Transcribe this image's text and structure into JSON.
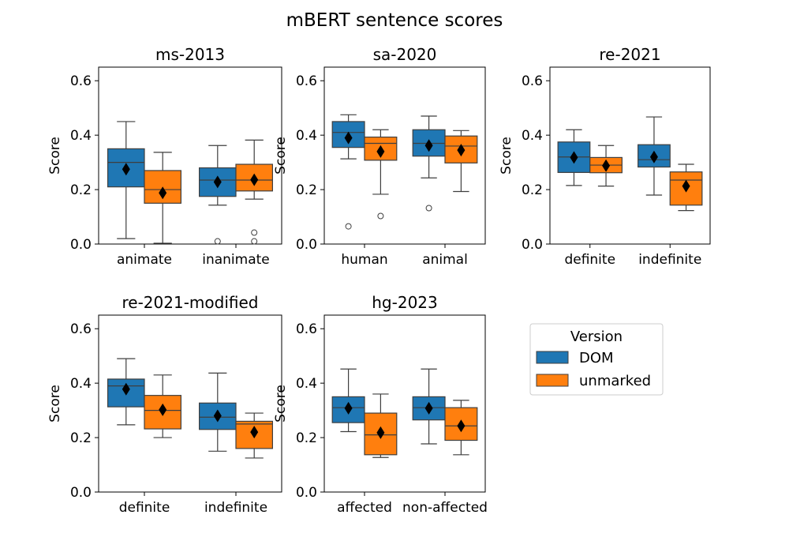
{
  "figure_title": "mBERT sentence scores",
  "legend": {
    "title": "Version",
    "placement": "right of the bottom row",
    "entries": [
      {
        "label": "DOM",
        "color": "#1f77b4"
      },
      {
        "label": "unmarked",
        "color": "#ff7f0e"
      }
    ]
  },
  "chart_data": [
    {
      "type": "box",
      "title": "ms-2013",
      "ylabel": "Score",
      "ylim": [
        0,
        0.65
      ],
      "yticks": [
        "0.0",
        "0.2",
        "0.4",
        "0.6"
      ],
      "categories": [
        "animate",
        "inanimate"
      ],
      "series": [
        {
          "name": "DOM",
          "boxes": [
            {
              "whisker_low": 0.02,
              "q1": 0.21,
              "median": 0.3,
              "q3": 0.35,
              "whisker_high": 0.45,
              "mean": 0.275,
              "outliers": []
            },
            {
              "whisker_low": 0.143,
              "q1": 0.175,
              "median": 0.235,
              "q3": 0.28,
              "whisker_high": 0.362,
              "mean": 0.228,
              "outliers": [
                0.01
              ]
            }
          ]
        },
        {
          "name": "unmarked",
          "boxes": [
            {
              "whisker_low": 0.003,
              "q1": 0.15,
              "median": 0.2,
              "q3": 0.27,
              "whisker_high": 0.337,
              "mean": 0.188,
              "outliers": []
            },
            {
              "whisker_low": 0.165,
              "q1": 0.195,
              "median": 0.235,
              "q3": 0.293,
              "whisker_high": 0.382,
              "mean": 0.236,
              "outliers": [
                0.042,
                0.01
              ]
            }
          ]
        }
      ]
    },
    {
      "type": "box",
      "title": "sa-2020",
      "ylabel": "Score",
      "ylim": [
        0,
        0.65
      ],
      "yticks": [
        "0.0",
        "0.2",
        "0.4",
        "0.6"
      ],
      "categories": [
        "human",
        "animal"
      ],
      "series": [
        {
          "name": "DOM",
          "boxes": [
            {
              "whisker_low": 0.313,
              "q1": 0.355,
              "median": 0.41,
              "q3": 0.45,
              "whisker_high": 0.475,
              "mean": 0.39,
              "outliers": [
                0.065
              ]
            },
            {
              "whisker_low": 0.243,
              "q1": 0.323,
              "median": 0.37,
              "q3": 0.42,
              "whisker_high": 0.47,
              "mean": 0.362,
              "outliers": [
                0.132
              ]
            }
          ]
        },
        {
          "name": "unmarked",
          "boxes": [
            {
              "whisker_low": 0.183,
              "q1": 0.308,
              "median": 0.37,
              "q3": 0.393,
              "whisker_high": 0.42,
              "mean": 0.34,
              "outliers": [
                0.103
              ]
            },
            {
              "whisker_low": 0.193,
              "q1": 0.298,
              "median": 0.36,
              "q3": 0.397,
              "whisker_high": 0.417,
              "mean": 0.345,
              "outliers": []
            }
          ]
        }
      ]
    },
    {
      "type": "box",
      "title": "re-2021",
      "ylabel": "Score",
      "ylim": [
        0,
        0.65
      ],
      "yticks": [
        "0.0",
        "0.2",
        "0.4",
        "0.6"
      ],
      "categories": [
        "definite",
        "indefinite"
      ],
      "series": [
        {
          "name": "DOM",
          "boxes": [
            {
              "whisker_low": 0.215,
              "q1": 0.263,
              "median": 0.32,
              "q3": 0.375,
              "whisker_high": 0.42,
              "mean": 0.318,
              "outliers": []
            },
            {
              "whisker_low": 0.18,
              "q1": 0.283,
              "median": 0.31,
              "q3": 0.365,
              "whisker_high": 0.467,
              "mean": 0.32,
              "outliers": []
            }
          ]
        },
        {
          "name": "unmarked",
          "boxes": [
            {
              "whisker_low": 0.213,
              "q1": 0.262,
              "median": 0.29,
              "q3": 0.318,
              "whisker_high": 0.362,
              "mean": 0.288,
              "outliers": []
            },
            {
              "whisker_low": 0.123,
              "q1": 0.143,
              "median": 0.235,
              "q3": 0.265,
              "whisker_high": 0.293,
              "mean": 0.213,
              "outliers": []
            }
          ]
        }
      ]
    },
    {
      "type": "box",
      "title": "re-2021-modified",
      "ylabel": "Score",
      "ylim": [
        0,
        0.65
      ],
      "yticks": [
        "0.0",
        "0.2",
        "0.4",
        "0.6"
      ],
      "categories": [
        "definite",
        "indefinite"
      ],
      "series": [
        {
          "name": "DOM",
          "boxes": [
            {
              "whisker_low": 0.247,
              "q1": 0.313,
              "median": 0.39,
              "q3": 0.415,
              "whisker_high": 0.49,
              "mean": 0.378,
              "outliers": []
            },
            {
              "whisker_low": 0.15,
              "q1": 0.23,
              "median": 0.275,
              "q3": 0.327,
              "whisker_high": 0.437,
              "mean": 0.28,
              "outliers": []
            }
          ]
        },
        {
          "name": "unmarked",
          "boxes": [
            {
              "whisker_low": 0.2,
              "q1": 0.232,
              "median": 0.3,
              "q3": 0.355,
              "whisker_high": 0.43,
              "mean": 0.302,
              "outliers": []
            },
            {
              "whisker_low": 0.125,
              "q1": 0.16,
              "median": 0.25,
              "q3": 0.26,
              "whisker_high": 0.29,
              "mean": 0.22,
              "outliers": []
            }
          ]
        }
      ]
    },
    {
      "type": "box",
      "title": "hg-2023",
      "ylabel": "Score",
      "ylim": [
        0,
        0.65
      ],
      "yticks": [
        "0.0",
        "0.2",
        "0.4",
        "0.6"
      ],
      "categories": [
        "affected",
        "non-affected"
      ],
      "series": [
        {
          "name": "DOM",
          "boxes": [
            {
              "whisker_low": 0.222,
              "q1": 0.255,
              "median": 0.31,
              "q3": 0.35,
              "whisker_high": 0.452,
              "mean": 0.308,
              "outliers": []
            },
            {
              "whisker_low": 0.177,
              "q1": 0.265,
              "median": 0.31,
              "q3": 0.35,
              "whisker_high": 0.452,
              "mean": 0.308,
              "outliers": []
            }
          ]
        },
        {
          "name": "unmarked",
          "boxes": [
            {
              "whisker_low": 0.127,
              "q1": 0.137,
              "median": 0.21,
              "q3": 0.29,
              "whisker_high": 0.36,
              "mean": 0.218,
              "outliers": []
            },
            {
              "whisker_low": 0.137,
              "q1": 0.19,
              "median": 0.243,
              "q3": 0.31,
              "whisker_high": 0.337,
              "mean": 0.243,
              "outliers": []
            }
          ]
        }
      ]
    }
  ]
}
